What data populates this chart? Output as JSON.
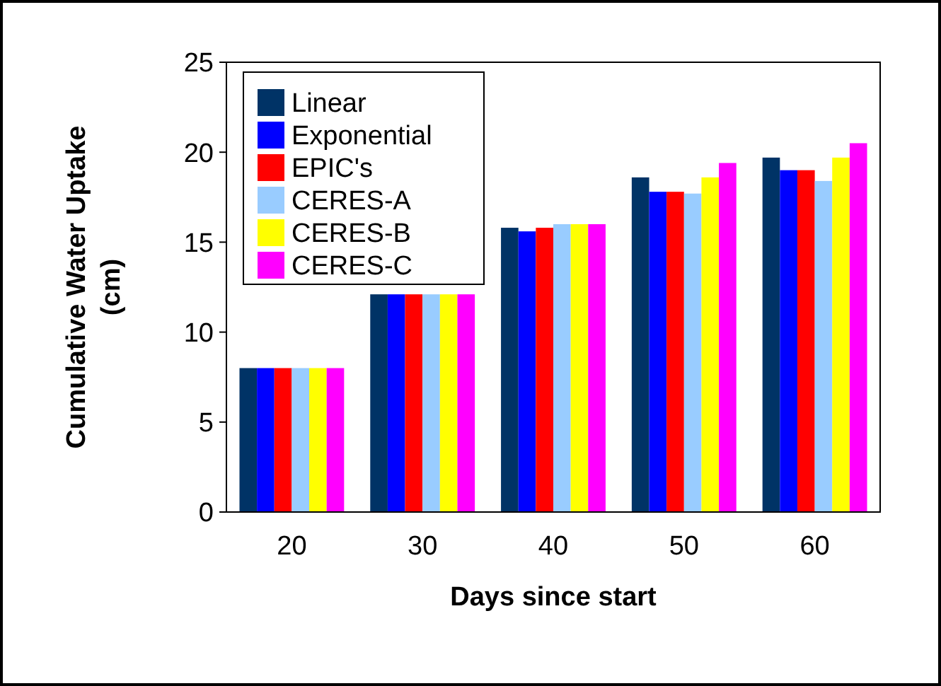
{
  "chart_data": {
    "type": "bar",
    "xlabel": "Days since start",
    "ylabel": "Cumulative Water Uptake (cm)",
    "categories": [
      "20",
      "30",
      "40",
      "50",
      "60"
    ],
    "ylim": [
      0,
      25
    ],
    "yticks": [
      0,
      5,
      10,
      15,
      20,
      25
    ],
    "grid": false,
    "legend": "top left",
    "series": [
      {
        "name": "Linear",
        "color": "#003366",
        "values": [
          8.0,
          12.1,
          15.8,
          18.6,
          19.7
        ]
      },
      {
        "name": "Exponential",
        "color": "#0000ff",
        "values": [
          8.0,
          12.1,
          15.6,
          17.8,
          19.0
        ]
      },
      {
        "name": "EPIC's",
        "color": "#ff0000",
        "values": [
          8.0,
          12.1,
          15.8,
          17.8,
          19.0
        ]
      },
      {
        "name": "CERES-A",
        "color": "#99ccff",
        "values": [
          8.0,
          12.1,
          16.0,
          17.7,
          18.4
        ]
      },
      {
        "name": "CERES-B",
        "color": "#ffff00",
        "values": [
          8.0,
          12.1,
          16.0,
          18.6,
          19.7
        ]
      },
      {
        "name": "CERES-C",
        "color": "#ff00ff",
        "values": [
          8.0,
          12.1,
          16.0,
          19.4,
          20.5
        ]
      }
    ]
  }
}
